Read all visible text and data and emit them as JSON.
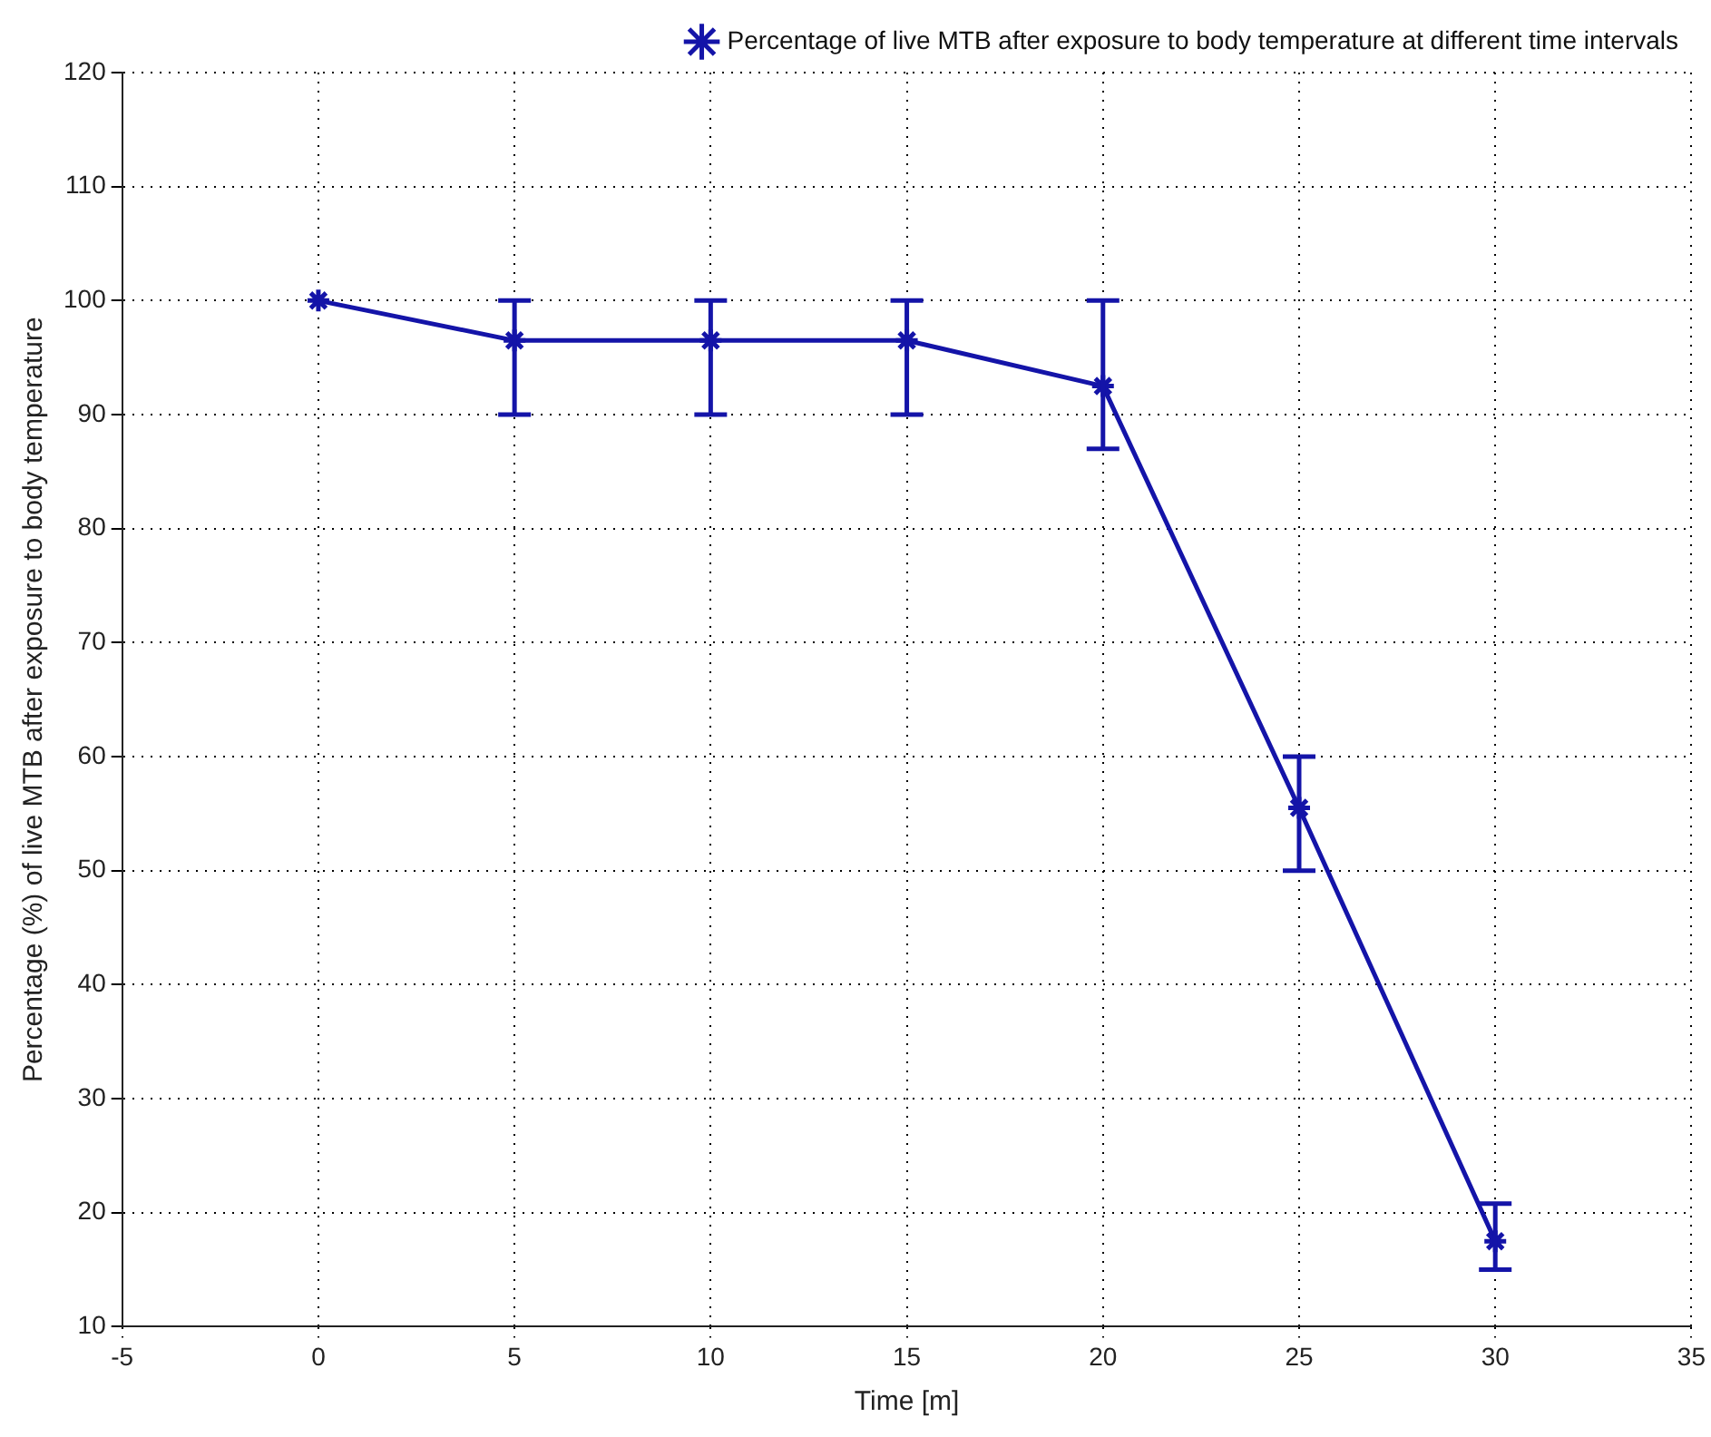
{
  "chart_data": {
    "type": "line",
    "xlabel": "Time [m]",
    "ylabel": "Percentage (%) of live MTB after exposure to body temperature",
    "x": [
      0,
      5,
      10,
      15,
      20,
      25,
      30
    ],
    "series": [
      {
        "name": "Percentage of live MTB after exposure to body temperature at different time intervals",
        "color": "#1414a8",
        "values": [
          100,
          96.5,
          96.5,
          96.5,
          92.5,
          55.5,
          17.5
        ],
        "errors": [
          null,
          [
            90,
            100
          ],
          [
            90,
            100
          ],
          [
            90,
            100
          ],
          [
            87,
            100
          ],
          [
            50,
            60
          ],
          [
            15,
            20.8
          ]
        ]
      }
    ],
    "xlim": [
      -5,
      35
    ],
    "xticks": [
      -5,
      0,
      5,
      10,
      15,
      20,
      25,
      30,
      35
    ],
    "ylim": [
      10,
      120
    ],
    "yticks": [
      10,
      20,
      30,
      40,
      50,
      60,
      70,
      80,
      90,
      100,
      110,
      120
    ],
    "grid": true,
    "legend": "top right",
    "marker": "cross",
    "line_style": "solid"
  }
}
